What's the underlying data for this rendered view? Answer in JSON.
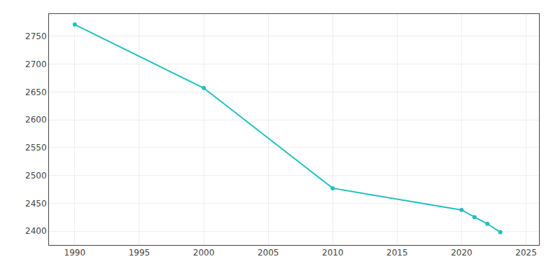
{
  "chart_data": {
    "type": "line",
    "x": [
      1990,
      2000,
      2010,
      2020,
      2021,
      2022,
      2023
    ],
    "values": [
      2771,
      2657,
      2477,
      2438,
      2425,
      2413,
      2398
    ],
    "color": "#20c0c0",
    "marker": "circle",
    "xlim": [
      1988,
      2026
    ],
    "ylim": [
      2375,
      2790
    ],
    "xticks": [
      1990,
      1995,
      2000,
      2005,
      2010,
      2015,
      2020,
      2025
    ],
    "yticks": [
      2400,
      2450,
      2500,
      2550,
      2600,
      2650,
      2700,
      2750
    ],
    "grid": true
  }
}
